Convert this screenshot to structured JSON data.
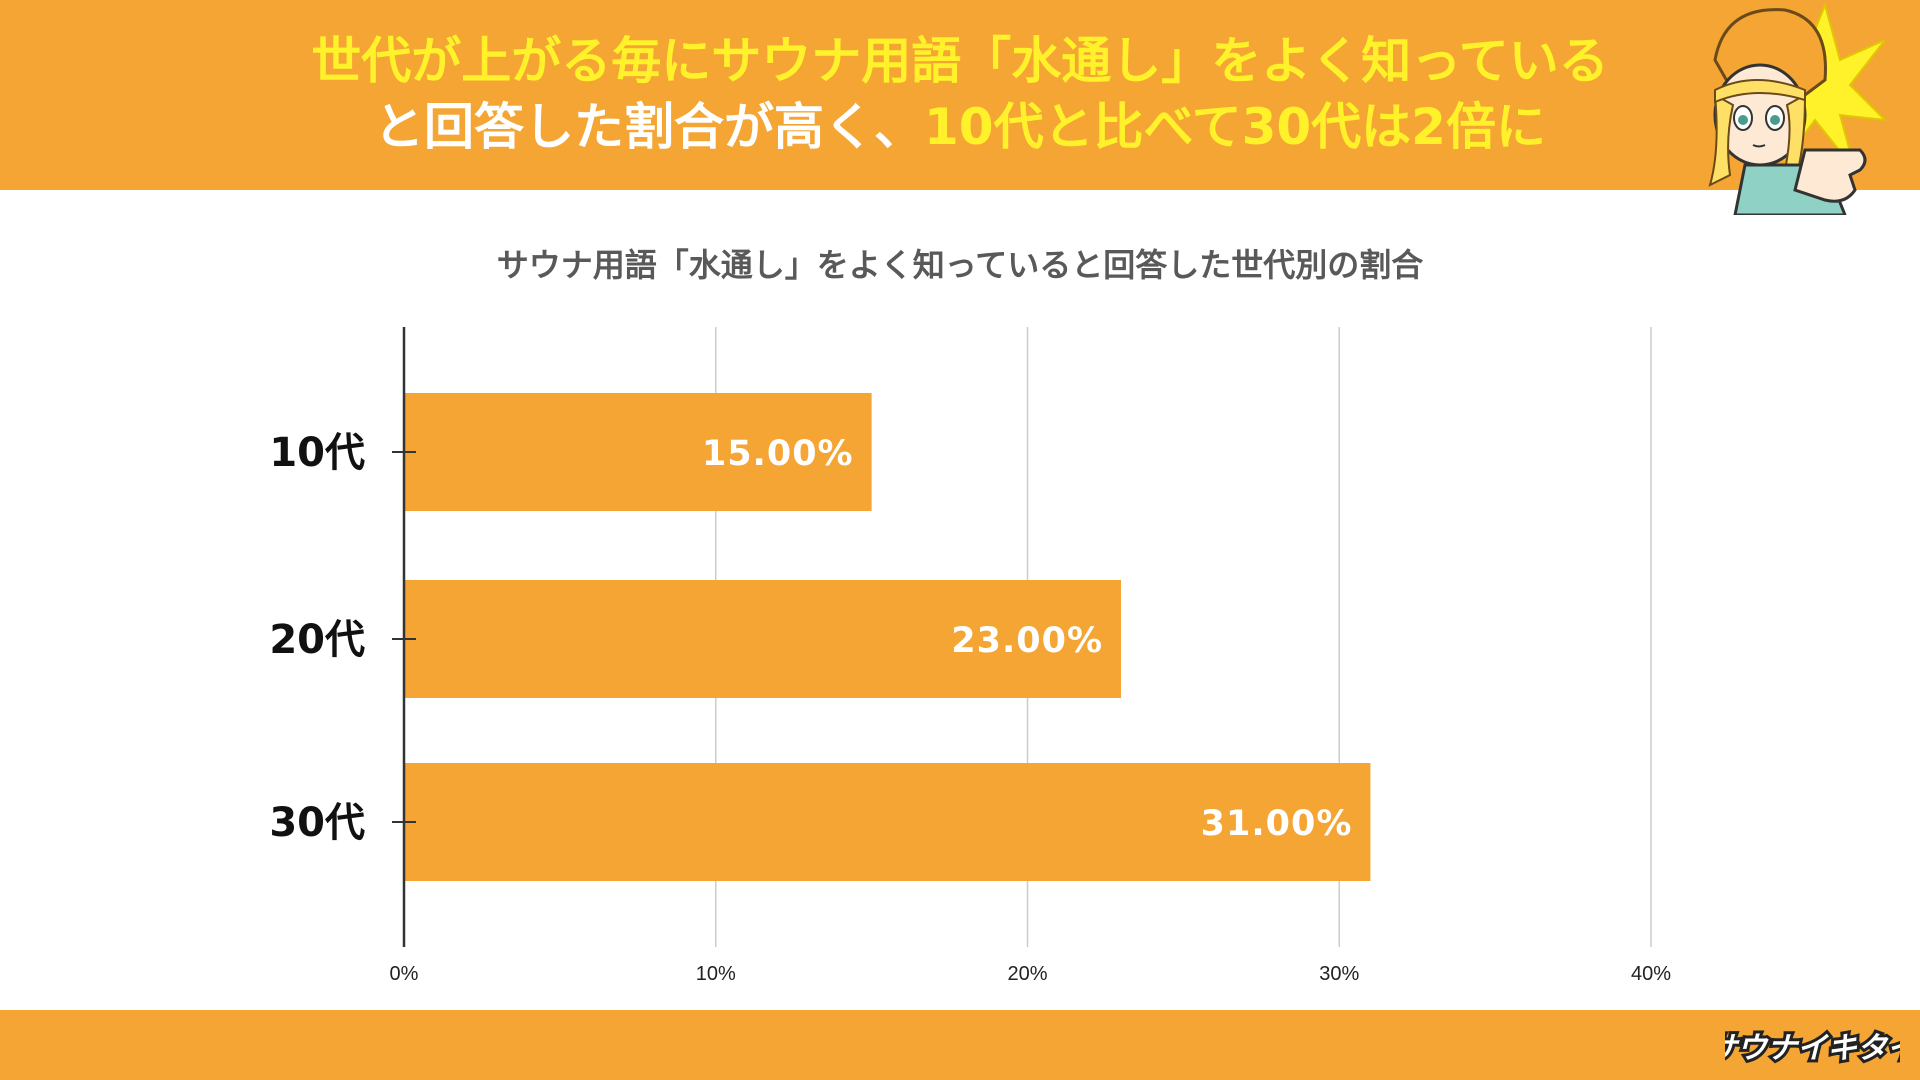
{
  "headline": {
    "line1": [
      {
        "text": "世代が上がる毎にサウナ用語「水通し」をよく知っている",
        "highlight": true
      }
    ],
    "line2": [
      {
        "text": "と回答した割合が高く、",
        "highlight": false
      },
      {
        "text": "10代と比べて30代は2倍に",
        "highlight": true
      }
    ]
  },
  "colors": {
    "accent": "#f4a533",
    "highlight": "#fff22b",
    "bar_label": "#ffffff",
    "grid": "#cccccc",
    "axis": "#333333"
  },
  "logo_text": "サウナイキタイ",
  "mascot_icon": "mascot-pointing-icon",
  "chart_data": {
    "type": "bar",
    "orientation": "horizontal",
    "title": "サウナ用語「水通し」をよく知っていると回答した世代別の割合",
    "categories": [
      "10代",
      "20代",
      "30代"
    ],
    "values": [
      15.0,
      23.0,
      31.0
    ],
    "value_labels": [
      "15.00%",
      "23.00%",
      "31.00%"
    ],
    "xlim": [
      0,
      40
    ],
    "x_ticks": [
      0,
      10,
      20,
      30,
      40
    ],
    "x_tick_labels": [
      "0%",
      "10%",
      "20%",
      "30%",
      "40%"
    ],
    "grid": true,
    "legend": "none"
  }
}
